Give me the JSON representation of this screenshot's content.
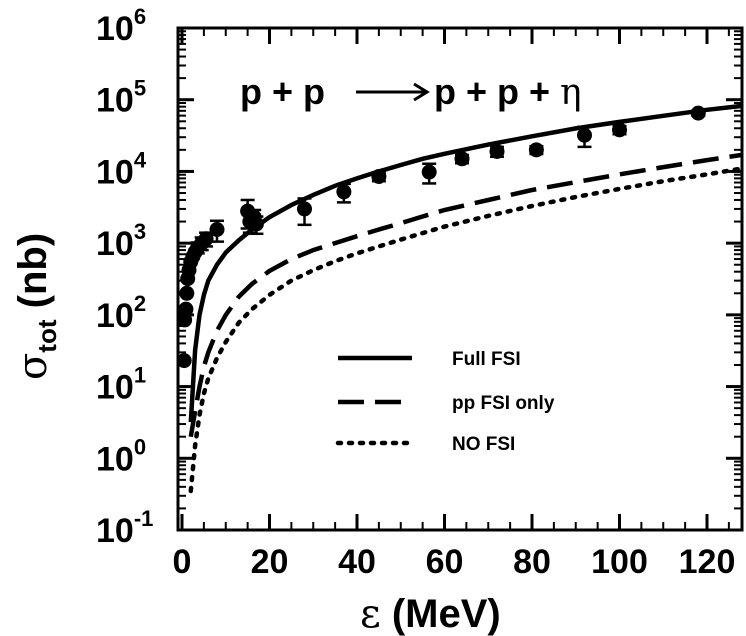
{
  "chart_data": {
    "type": "line",
    "title": "",
    "annotation": {
      "lhs": "p + p",
      "rhs": "p + p + ",
      "particle": "η"
    },
    "xlabel": {
      "symbol": "ε",
      "unit": " (MeV)"
    },
    "ylabel": {
      "symbol": "σ",
      "subscript": "tot",
      "unit": " (nb)"
    },
    "xlim": [
      0,
      128
    ],
    "ylim_log10": [
      -1,
      6
    ],
    "y_scale": "log",
    "x_ticks": [
      {
        "value": 0,
        "label": "0"
      },
      {
        "value": 20,
        "label": "20"
      },
      {
        "value": 40,
        "label": "40"
      },
      {
        "value": 60,
        "label": "60"
      },
      {
        "value": 80,
        "label": "80"
      },
      {
        "value": 100,
        "label": "100"
      },
      {
        "value": 120,
        "label": "120"
      }
    ],
    "y_ticks": [
      {
        "exp": -1,
        "base": "10",
        "power": "-1"
      },
      {
        "exp": 0,
        "base": "10",
        "power": "0"
      },
      {
        "exp": 1,
        "base": "10",
        "power": "1"
      },
      {
        "exp": 2,
        "base": "10",
        "power": "2"
      },
      {
        "exp": 3,
        "base": "10",
        "power": "3"
      },
      {
        "exp": 4,
        "base": "10",
        "power": "4"
      },
      {
        "exp": 5,
        "base": "10",
        "power": "5"
      },
      {
        "exp": 6,
        "base": "10",
        "power": "6"
      }
    ],
    "legend_position": "lower-right",
    "series": [
      {
        "name": "Full FSI",
        "style": "solid",
        "x": [
          2,
          3,
          4,
          5,
          6,
          8,
          10,
          13,
          16,
          20,
          25,
          30,
          35,
          40,
          45,
          50,
          55,
          60,
          70,
          80,
          90,
          100,
          110,
          120,
          128
        ],
        "y": [
          3.2,
          32,
          100,
          190,
          300,
          500,
          740,
          1100,
          1550,
          2300,
          3400,
          4700,
          6300,
          8000,
          10000,
          12300,
          15000,
          17600,
          23700,
          30900,
          39800,
          49000,
          59600,
          72400,
          82000
        ]
      },
      {
        "name": "pp FSI only",
        "style": "dashed",
        "x": [
          2,
          3,
          4,
          5,
          6,
          8,
          10,
          13,
          16,
          20,
          25,
          30,
          35,
          40,
          45,
          50,
          55,
          60,
          70,
          80,
          90,
          100,
          110,
          120,
          128
        ],
        "y": [
          2,
          4.5,
          10,
          19,
          30,
          60,
          100,
          180,
          270,
          410,
          600,
          800,
          1000,
          1250,
          1550,
          1900,
          2350,
          2900,
          4000,
          5500,
          7100,
          9100,
          11500,
          14400,
          17000
        ]
      },
      {
        "name": "NO FSI",
        "style": "dotted",
        "x": [
          2,
          3,
          4,
          5,
          6,
          8,
          10,
          13,
          16,
          20,
          25,
          30,
          35,
          40,
          45,
          50,
          55,
          60,
          70,
          80,
          90,
          100,
          110,
          120,
          128
        ],
        "y": [
          0.35,
          1.5,
          4,
          8,
          13,
          25,
          42,
          78,
          120,
          190,
          300,
          420,
          560,
          720,
          900,
          1120,
          1380,
          1700,
          2400,
          3300,
          4400,
          5700,
          7300,
          9100,
          11000
        ]
      }
    ],
    "data_points": [
      {
        "x": 0.5,
        "y": 23,
        "yerr": 0
      },
      {
        "x": 0.6,
        "y": 85,
        "yerr": 0
      },
      {
        "x": 0.9,
        "y": 120,
        "yerr": 0
      },
      {
        "x": 1.1,
        "y": 200,
        "yerr": 0
      },
      {
        "x": 1.3,
        "y": 320,
        "yerr": 0
      },
      {
        "x": 1.6,
        "y": 420,
        "yerr": 0
      },
      {
        "x": 2.0,
        "y": 550,
        "yerr": 0
      },
      {
        "x": 2.5,
        "y": 650,
        "yerr": 0
      },
      {
        "x": 3.0,
        "y": 750,
        "yerr": 0
      },
      {
        "x": 3.6,
        "y": 870,
        "yerr": 150
      },
      {
        "x": 4.5,
        "y": 1000,
        "yerr": 200
      },
      {
        "x": 5.5,
        "y": 1150,
        "yerr": 250
      },
      {
        "x": 8.0,
        "y": 1550,
        "yerr": 500
      },
      {
        "x": 15.0,
        "y": 2800,
        "yerr": 1200
      },
      {
        "x": 15.5,
        "y": 2000,
        "yerr": 600
      },
      {
        "x": 16.5,
        "y": 2300,
        "yerr": 600
      },
      {
        "x": 17.0,
        "y": 1850,
        "yerr": 500
      },
      {
        "x": 28.0,
        "y": 3000,
        "yerr": 1200
      },
      {
        "x": 37.0,
        "y": 5200,
        "yerr": 1500
      },
      {
        "x": 45.0,
        "y": 8500,
        "yerr": 1200
      },
      {
        "x": 56.5,
        "y": 9800,
        "yerr": 3000
      },
      {
        "x": 64.0,
        "y": 15000,
        "yerr": 2000
      },
      {
        "x": 72.0,
        "y": 19000,
        "yerr": 3000
      },
      {
        "x": 81.0,
        "y": 20000,
        "yerr": 2500
      },
      {
        "x": 92.0,
        "y": 32000,
        "yerr": 10000
      },
      {
        "x": 100.0,
        "y": 38000,
        "yerr": 5000
      },
      {
        "x": 118.0,
        "y": 65000,
        "yerr": 5000
      }
    ]
  }
}
